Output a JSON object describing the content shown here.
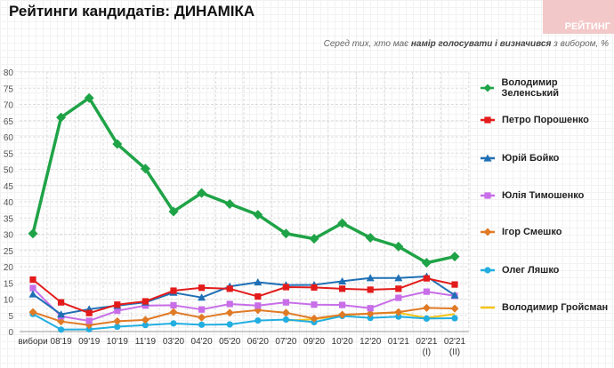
{
  "header": {
    "title": "Рейтинги кандидатів: ДИНАМІКА",
    "logo": "РЕЙТИНГ",
    "subtitle_pre": "Серед тих, хто має ",
    "subtitle_bold": "намір голосувати і визначився",
    "subtitle_post": " з вибором, %"
  },
  "chart_data": {
    "type": "line",
    "title": "Рейтинги кандидатів: ДИНАМІКА",
    "ylim": [
      0,
      80
    ],
    "yticks": [
      0,
      5,
      10,
      15,
      20,
      25,
      30,
      35,
      40,
      45,
      50,
      55,
      60,
      65,
      70,
      75,
      80
    ],
    "categories": [
      "вибори",
      "08'19",
      "09'19",
      "10'19",
      "11'19",
      "03'20",
      "04'20",
      "05'20",
      "06'20",
      "07'20",
      "09'20",
      "10'20",
      "12'20",
      "01'21",
      "02'21\n(I)",
      "02'21\n(II)"
    ],
    "legend_position": "right",
    "series": [
      {
        "name": "Володимир Зеленський",
        "color": "#1fa347",
        "marker": "diamond",
        "values": [
          30.2,
          66,
          72,
          57.8,
          50.2,
          37,
          42.7,
          39.3,
          36,
          30.2,
          28.6,
          33.4,
          28.9,
          26.2,
          21.2,
          23.1
        ]
      },
      {
        "name": "Петро Порошенко",
        "color": "#e31b1b",
        "marker": "square",
        "values": [
          16,
          9,
          5.7,
          8.3,
          9.3,
          12.6,
          13.5,
          13.2,
          10.8,
          13.7,
          13.6,
          13.2,
          12.9,
          13.2,
          16.4,
          14.5
        ]
      },
      {
        "name": "Юрій Бойко",
        "color": "#1f6fb5",
        "marker": "triangle",
        "values": [
          11.5,
          5.3,
          6.9,
          8,
          9,
          12,
          10.5,
          13.9,
          15.2,
          14.3,
          14.4,
          15.5,
          16.5,
          16.5,
          17,
          11.2
        ]
      },
      {
        "name": "Юлія Тимошенко",
        "color": "#c86ee8",
        "marker": "square",
        "values": [
          13.4,
          4.7,
          3.3,
          6.4,
          8,
          8.1,
          6.8,
          8.5,
          8,
          9,
          8.3,
          8.2,
          7.2,
          10.4,
          12.3,
          11
        ]
      },
      {
        "name": "Ігор Смешко",
        "color": "#e07a25",
        "marker": "diamond",
        "values": [
          6,
          3.1,
          2,
          3.2,
          3.6,
          6,
          4.3,
          5.8,
          6.6,
          5.8,
          4,
          5.2,
          5.5,
          6,
          7.3,
          7.1
        ]
      },
      {
        "name": "Олег Ляшко",
        "color": "#22aee0",
        "marker": "circle",
        "values": [
          5.4,
          0.6,
          0.7,
          1.5,
          2,
          2.5,
          2.1,
          2.2,
          3.4,
          3.7,
          2.9,
          4.8,
          4.2,
          4.6,
          4,
          4.1
        ]
      },
      {
        "name": "Володимир Гройсман",
        "color": "#f5c518",
        "marker": "none",
        "values": [
          null,
          null,
          null,
          null,
          null,
          null,
          null,
          null,
          null,
          3.4,
          3.8,
          5,
          5.6,
          5.8,
          4.2,
          5.4
        ]
      }
    ]
  }
}
